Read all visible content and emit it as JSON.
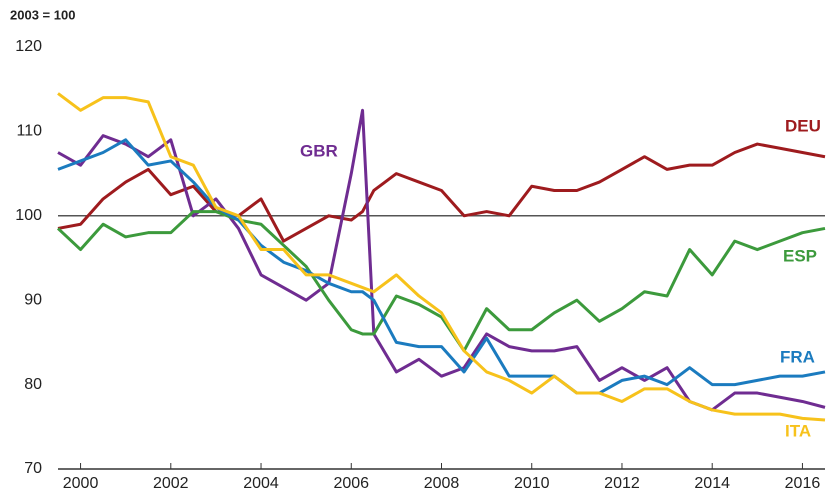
{
  "chart_data": {
    "type": "line",
    "y_label": "2003 = 100",
    "x": [
      1999.5,
      2000,
      2000.5,
      2001,
      2001.5,
      2002,
      2002.5,
      2003,
      2003.5,
      2004,
      2004.5,
      2005,
      2005.5,
      2006,
      2006.25,
      2006.5,
      2007,
      2007.5,
      2008,
      2008.5,
      2009,
      2009.5,
      2010,
      2010.5,
      2011,
      2011.5,
      2012,
      2012.5,
      2013,
      2013.5,
      2014,
      2014.5,
      2015,
      2015.5,
      2016,
      2016.5
    ],
    "series": [
      {
        "name": "DEU",
        "color": "#9e1b1e",
        "values": [
          98.5,
          99,
          102,
          104,
          105.5,
          102.5,
          103.5,
          100.5,
          100,
          102,
          97,
          98.5,
          100,
          99.5,
          100.5,
          103,
          105,
          104,
          103,
          100,
          100.5,
          100,
          103.5,
          103,
          103,
          104,
          105.5,
          107,
          105.5,
          106,
          106,
          107.5,
          108.5,
          108,
          107.5,
          107
        ]
      },
      {
        "name": "GBR",
        "color": "#6f2c91",
        "values": [
          107.5,
          106,
          109.5,
          108.5,
          107,
          109,
          100,
          102,
          98.5,
          93,
          91.5,
          90,
          92,
          105,
          112.5,
          86,
          81.5,
          83,
          81,
          82,
          86,
          84.5,
          84,
          84,
          84.5,
          80.5,
          82,
          80.5,
          82,
          78,
          77,
          79,
          79,
          78.5,
          78,
          77.3
        ]
      },
      {
        "name": "ESP",
        "color": "#3c9a3c",
        "values": [
          98.5,
          96,
          99,
          97.5,
          98,
          98,
          100.5,
          100.5,
          99.5,
          99,
          96.5,
          94,
          90,
          86.5,
          86,
          86,
          90.5,
          89.5,
          88,
          84,
          89,
          86.5,
          86.5,
          88.5,
          90,
          87.5,
          89,
          91,
          90.5,
          96,
          93,
          97,
          96,
          97,
          98,
          98.5
        ]
      },
      {
        "name": "FRA",
        "color": "#1b7bbf",
        "values": [
          105.5,
          106.5,
          107.5,
          109,
          106,
          106.5,
          104,
          101,
          99.5,
          96.5,
          94.5,
          93.5,
          92,
          91,
          91,
          90,
          85,
          84.5,
          84.5,
          81.5,
          85.5,
          81,
          81,
          81,
          79,
          79,
          80.5,
          81,
          80,
          82,
          80,
          80,
          80.5,
          81,
          81,
          81.5
        ]
      },
      {
        "name": "ITA",
        "color": "#f7c21b",
        "values": [
          114.5,
          112.5,
          114,
          114,
          113.5,
          107,
          106,
          101,
          100,
          96,
          96,
          93,
          93,
          92,
          91.5,
          91,
          93,
          90.5,
          88.5,
          84,
          81.5,
          80.5,
          79,
          81,
          79,
          79,
          78,
          79.5,
          79.5,
          78,
          77,
          76.5,
          76.5,
          76.5,
          76,
          75.8
        ]
      }
    ],
    "reference_line": 100,
    "xlim": [
      1999.5,
      2016.5
    ],
    "xticks": [
      2000,
      2002,
      2004,
      2006,
      2008,
      2010,
      2012,
      2014,
      2016
    ],
    "ylim": [
      70,
      120
    ],
    "yticks": [
      70,
      80,
      90,
      100,
      110,
      120
    ]
  }
}
